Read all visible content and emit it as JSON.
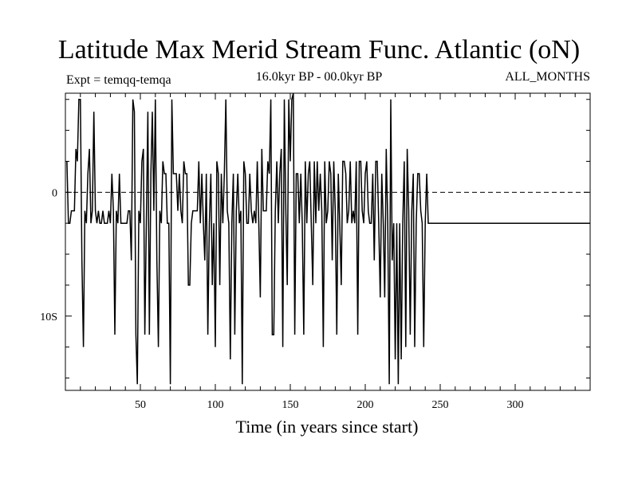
{
  "chart_data": {
    "type": "line",
    "title": "Latitude Max Merid Stream Func. Atlantic (oN)",
    "experiment_label": "Expt = temqq-temqa",
    "period_label": "16.0kyr BP - 00.0kyr BP",
    "months_label": "ALL_MONTHS",
    "xlabel": "Time (in years since start)",
    "ylabel": "",
    "xlim": [
      0,
      350
    ],
    "ylim": [
      -16,
      8
    ],
    "x_ticks": [
      50,
      100,
      150,
      200,
      250,
      300
    ],
    "y_ticks": [
      {
        "value": 0,
        "label": "0"
      },
      {
        "value": -10,
        "label": "10S"
      }
    ],
    "zero_line": "dashed",
    "series": [
      {
        "name": "temqq-temqa",
        "x_start": 1,
        "x_step": 1,
        "values": [
          2.5,
          -2.5,
          -2.5,
          -1.5,
          -1.5,
          -1.5,
          3.5,
          2.5,
          7.5,
          7.5,
          -5.5,
          -12.5,
          -1.5,
          -2.5,
          1.5,
          3.5,
          -2.5,
          -1.5,
          6.5,
          -1.5,
          -2.5,
          -1.5,
          -2.5,
          -2.5,
          -1.5,
          -2.5,
          -2.5,
          -2.5,
          -1.5,
          -2.5,
          1.5,
          -1.5,
          -11.5,
          -1.5,
          -2.5,
          1.5,
          -2.5,
          -2.5,
          -2.5,
          -2.5,
          -2.5,
          -1.5,
          -1.5,
          -5.5,
          7.5,
          6.5,
          -11.5,
          -15.5,
          -1.5,
          -2.5,
          2.5,
          3.5,
          -11.5,
          -2.5,
          6.5,
          -11.5,
          1.5,
          6.5,
          -1.5,
          7.5,
          -5.5,
          -12.5,
          -1.5,
          -2.5,
          2.5,
          1.5,
          1.5,
          -2.5,
          -2.5,
          -15.5,
          7.5,
          1.5,
          1.5,
          1.5,
          -1.5,
          1.5,
          -1.5,
          -2.5,
          2.5,
          1.5,
          1.5,
          -7.5,
          -7.5,
          -2.5,
          -1.5,
          -1.5,
          -1.5,
          -1.5,
          2.5,
          -2.5,
          1.5,
          -2.5,
          -5.5,
          1.5,
          -11.5,
          -2.5,
          1.5,
          -7.5,
          -2.5,
          -12.5,
          2.5,
          1.5,
          -7.5,
          1.5,
          -2.5,
          1.5,
          7.5,
          -1.5,
          -2.5,
          -13.5,
          -2.5,
          1.5,
          -11.5,
          -1.5,
          1.5,
          -2.5,
          -1.5,
          -15.5,
          2.5,
          1.5,
          -2.5,
          -2.5,
          1.5,
          -1.5,
          -2.5,
          -1.5,
          -2.5,
          2.5,
          -2.5,
          -8.5,
          3.5,
          -1.5,
          -1.5,
          -1.5,
          2.5,
          1.5,
          7.5,
          -11.5,
          -11.5,
          -1.5,
          2.5,
          -2.5,
          1.5,
          3.5,
          -12.5,
          7.5,
          -1.5,
          -7.5,
          7.5,
          2.5,
          7.5,
          8.0,
          -11.5,
          1.5,
          1.5,
          -2.5,
          1.5,
          -2.5,
          -11.5,
          2.5,
          -2.5,
          1.5,
          2.5,
          -2.5,
          -7.5,
          2.5,
          -2.5,
          2.5,
          -1.5,
          1.5,
          -1.5,
          -12.5,
          2.5,
          -2.5,
          -1.5,
          2.5,
          1.5,
          -5.5,
          2.5,
          -1.5,
          -11.5,
          1.5,
          -2.5,
          -7.5,
          2.5,
          2.5,
          1.5,
          -2.5,
          -1.5,
          2.5,
          -2.5,
          -1.5,
          -2.5,
          2.5,
          -11.5,
          2.5,
          2.5,
          -1.5,
          -2.5,
          1.5,
          2.5,
          -1.5,
          -2.5,
          -2.5,
          1.5,
          -5.5,
          2.5,
          2.5,
          -2.5,
          -8.5,
          1.5,
          -2.5,
          -8.5,
          3.5,
          -2.5,
          -15.5,
          7.5,
          -5.5,
          -2.5,
          -13.5,
          -2.5,
          -15.5,
          -2.5,
          -13.5,
          -2.5,
          2.5,
          -12.5,
          3.5,
          -1.5,
          -11.5,
          -1.5,
          1.5,
          -12.5,
          -2.5,
          1.5,
          1.5,
          -1.5,
          -2.5,
          -12.5,
          -2.5,
          1.5,
          -2.5
        ]
      }
    ]
  }
}
